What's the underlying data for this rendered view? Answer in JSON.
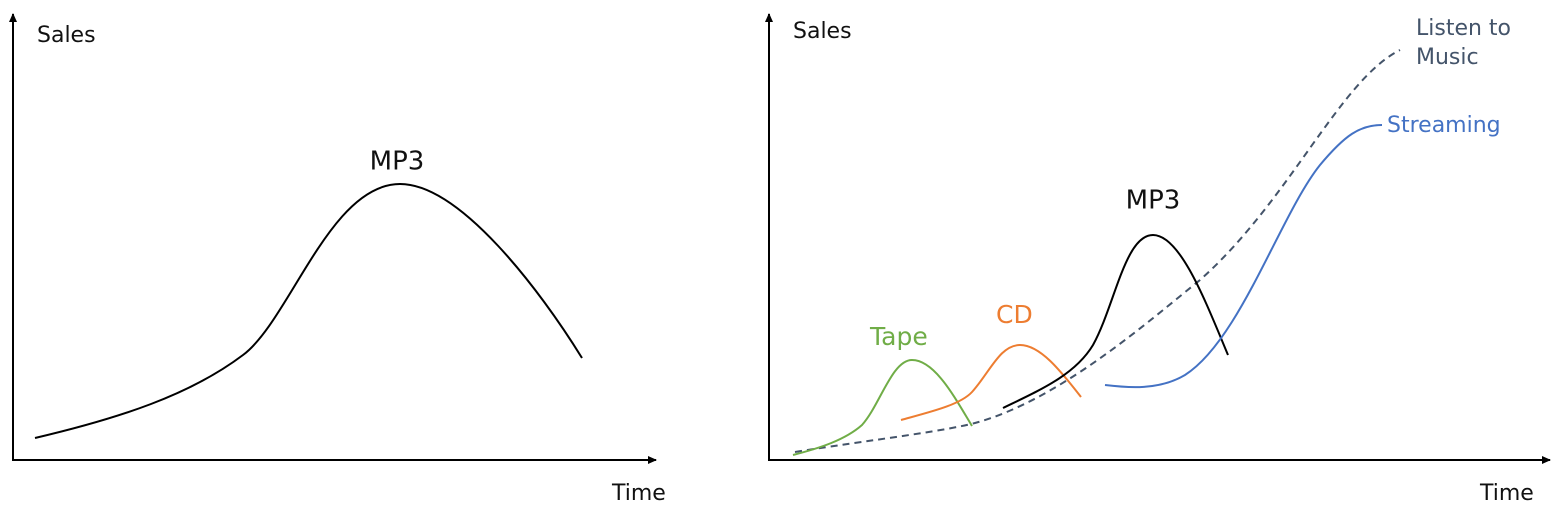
{
  "left_panel": {
    "y_axis_label": "Sales",
    "x_axis_label": "Time",
    "curve_label": "MP3"
  },
  "right_panel": {
    "y_axis_label": "Sales",
    "x_axis_label": "Time",
    "curve_labels": {
      "tape": "Tape",
      "cd": "CD",
      "mp3": "MP3",
      "listen_to_music": [
        "Listen to",
        "Music"
      ],
      "streaming": "Streaming"
    }
  }
}
